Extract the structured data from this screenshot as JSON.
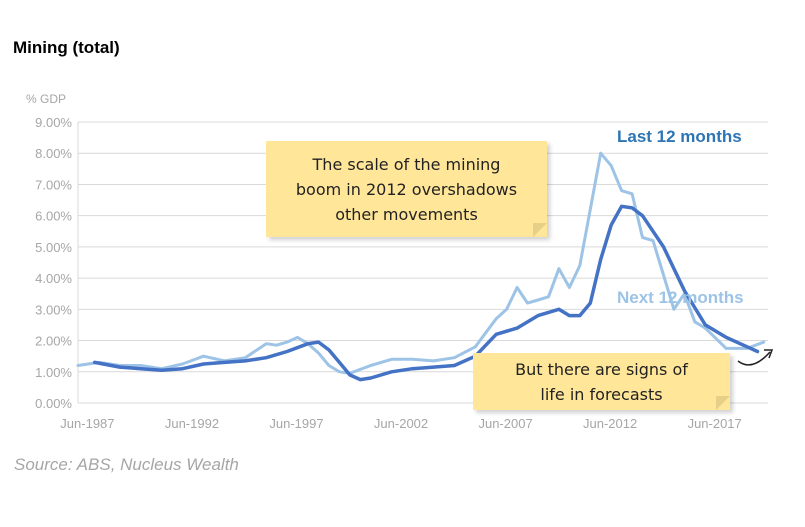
{
  "title": "Mining (total)",
  "source": "Source: ABS, Nucleus Wealth",
  "annotations": [
    {
      "text": "The scale of the mining\nboom in 2012 overshadows\nother movements"
    },
    {
      "text": "But there are signs of\nlife in forecasts"
    }
  ],
  "colors": {
    "last12": "#4472c4",
    "next12": "#9dc3e6",
    "last12_label": "#2e75b6",
    "next12_label": "#9dc3e6",
    "note": "#ffe699"
  },
  "chart_data": {
    "type": "line",
    "ylabel": "% GDP",
    "ylim": [
      0,
      9
    ],
    "yticks": [
      "0.00%",
      "1.00%",
      "2.00%",
      "3.00%",
      "4.00%",
      "5.00%",
      "6.00%",
      "7.00%",
      "8.00%",
      "9.00%"
    ],
    "xlim": [
      1987.0,
      2020.0
    ],
    "xticks": [
      "Jun-1987",
      "Jun-1992",
      "Jun-1997",
      "Jun-2002",
      "Jun-2007",
      "Jun-2012",
      "Jun-2017"
    ],
    "grid": "horizontal",
    "series": [
      {
        "name": "Last 12 months",
        "x": [
          1987.8,
          1989,
          1990,
          1991,
          1992,
          1993,
          1994,
          1995,
          1996,
          1997,
          1998,
          1998.5,
          1999,
          1999.5,
          2000,
          2000.5,
          2001,
          2002,
          2003,
          2004,
          2005,
          2006,
          2007,
          2008,
          2009,
          2010,
          2010.5,
          2011,
          2011.5,
          2012,
          2012.5,
          2013,
          2013.5,
          2014,
          2015,
          2016,
          2017,
          2018,
          2019,
          2019.5
        ],
        "y": [
          1.3,
          1.15,
          1.1,
          1.05,
          1.1,
          1.25,
          1.3,
          1.35,
          1.45,
          1.65,
          1.9,
          1.95,
          1.7,
          1.3,
          0.9,
          0.75,
          0.8,
          1.0,
          1.1,
          1.15,
          1.2,
          1.5,
          2.2,
          2.4,
          2.8,
          3.0,
          2.8,
          2.8,
          3.2,
          4.6,
          5.7,
          6.3,
          6.25,
          6.0,
          5.0,
          3.6,
          2.5,
          2.1,
          1.8,
          1.65
        ]
      },
      {
        "name": "Next 12 months",
        "x": [
          1987,
          1988,
          1989,
          1990,
          1991,
          1992,
          1993,
          1994,
          1995,
          1996,
          1996.5,
          1997,
          1997.5,
          1998,
          1998.5,
          1999,
          1999.5,
          2000,
          2001,
          2002,
          2003,
          2004,
          2005,
          2006,
          2007,
          2007.5,
          2008,
          2008.5,
          2009,
          2009.5,
          2010,
          2010.5,
          2011,
          2011.5,
          2012,
          2012.5,
          2013,
          2013.5,
          2014,
          2014.5,
          2015,
          2015.5,
          2016,
          2016.5,
          2017,
          2018,
          2019,
          2019.8
        ],
        "y": [
          1.2,
          1.3,
          1.2,
          1.2,
          1.1,
          1.25,
          1.5,
          1.35,
          1.45,
          1.9,
          1.85,
          1.95,
          2.1,
          1.9,
          1.6,
          1.2,
          1.0,
          0.95,
          1.2,
          1.4,
          1.4,
          1.35,
          1.45,
          1.8,
          2.7,
          3.0,
          3.7,
          3.2,
          3.3,
          3.4,
          4.3,
          3.7,
          4.4,
          6.2,
          8.0,
          7.6,
          6.8,
          6.7,
          5.3,
          5.2,
          4.1,
          3.0,
          3.5,
          2.6,
          2.4,
          1.75,
          1.75,
          1.95
        ]
      }
    ],
    "series_labels": [
      "Last 12 months",
      "Next 12 months"
    ]
  }
}
